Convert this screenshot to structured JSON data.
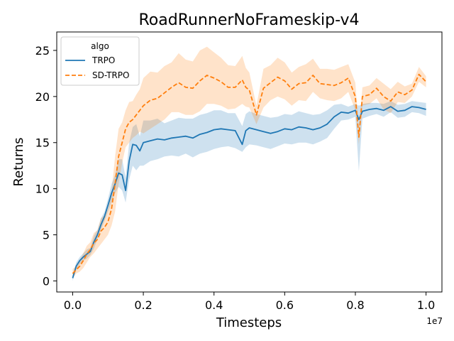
{
  "chart_data": {
    "type": "line",
    "title": "RoadRunnerNoFrameskip-v4",
    "xlabel": "Timesteps",
    "ylabel": "Returns",
    "x_offset_label": "1e7",
    "xlim": [
      -0.45,
      10.45
    ],
    "ylim": [
      -1.2,
      27.0
    ],
    "x_scale_factor": 10000000,
    "xticks": [
      0.0,
      2.0,
      4.0,
      6.0,
      8.0,
      10.0
    ],
    "xtick_labels": [
      "0.0",
      "0.2",
      "0.4",
      "0.6",
      "0.8",
      "1.0"
    ],
    "yticks": [
      0,
      5,
      10,
      15,
      20,
      25
    ],
    "ytick_labels": [
      "0",
      "5",
      "10",
      "15",
      "20",
      "25"
    ],
    "grid": false,
    "legend": {
      "title": "algo",
      "placement": "upper-left"
    },
    "series": [
      {
        "name": "TRPO",
        "color": "#1f77b4",
        "style": "solid",
        "x": [
          0.0,
          0.1,
          0.2,
          0.3,
          0.4,
          0.5,
          0.6,
          0.7,
          0.8,
          0.9,
          1.0,
          1.1,
          1.2,
          1.3,
          1.4,
          1.5,
          1.6,
          1.7,
          1.8,
          1.9,
          2.0,
          2.2,
          2.4,
          2.6,
          2.8,
          3.0,
          3.2,
          3.4,
          3.6,
          3.8,
          4.0,
          4.2,
          4.4,
          4.6,
          4.8,
          4.9,
          5.0,
          5.2,
          5.4,
          5.6,
          5.8,
          6.0,
          6.2,
          6.4,
          6.6,
          6.8,
          7.0,
          7.2,
          7.4,
          7.6,
          7.8,
          8.0,
          8.1,
          8.2,
          8.4,
          8.6,
          8.8,
          9.0,
          9.2,
          9.4,
          9.6,
          9.8,
          10.0
        ],
        "y": [
          0.3,
          1.6,
          2.2,
          2.6,
          2.9,
          3.2,
          4.2,
          5.0,
          6.1,
          7.0,
          8.2,
          9.5,
          10.5,
          11.7,
          11.5,
          9.8,
          13.0,
          14.8,
          14.7,
          14.1,
          15.0,
          15.2,
          15.4,
          15.3,
          15.5,
          15.6,
          15.7,
          15.5,
          15.9,
          16.1,
          16.4,
          16.5,
          16.4,
          16.3,
          14.8,
          16.3,
          16.6,
          16.4,
          16.2,
          16.0,
          16.2,
          16.5,
          16.4,
          16.7,
          16.6,
          16.4,
          16.6,
          17.0,
          17.8,
          18.3,
          18.2,
          18.5,
          17.5,
          18.4,
          18.6,
          18.7,
          18.5,
          18.9,
          18.4,
          18.5,
          18.9,
          18.8,
          18.6
        ],
        "lower": [
          0.0,
          1.2,
          1.8,
          2.2,
          2.4,
          2.8,
          3.5,
          4.5,
          5.5,
          6.5,
          7.5,
          8.5,
          9.5,
          10.2,
          9.8,
          8.5,
          11.0,
          12.5,
          12.0,
          12.5,
          12.5,
          13.0,
          13.2,
          13.5,
          13.6,
          13.5,
          13.8,
          13.4,
          13.8,
          14.0,
          14.3,
          14.5,
          14.6,
          14.4,
          14.0,
          14.5,
          14.8,
          14.7,
          14.5,
          14.3,
          14.6,
          14.9,
          14.8,
          15.0,
          15.0,
          14.8,
          15.1,
          15.5,
          16.5,
          17.4,
          17.5,
          17.8,
          11.9,
          17.6,
          17.9,
          18.1,
          17.8,
          18.3,
          17.7,
          17.8,
          18.3,
          18.2,
          17.9
        ],
        "upper": [
          0.6,
          2.0,
          2.6,
          3.0,
          3.4,
          3.6,
          4.9,
          5.5,
          6.8,
          7.5,
          8.9,
          10.5,
          11.5,
          13.2,
          13.2,
          11.2,
          15.0,
          16.7,
          17.0,
          15.7,
          17.4,
          17.4,
          17.6,
          17.1,
          17.4,
          17.7,
          17.6,
          17.6,
          18.0,
          18.2,
          18.5,
          18.5,
          18.2,
          18.2,
          16.8,
          18.1,
          18.4,
          18.1,
          17.9,
          17.7,
          17.8,
          18.1,
          18.0,
          18.4,
          18.2,
          18.0,
          18.1,
          18.5,
          19.1,
          19.2,
          18.9,
          19.2,
          19.0,
          19.2,
          19.3,
          19.3,
          19.2,
          19.5,
          19.1,
          19.2,
          19.5,
          19.4,
          19.3
        ]
      },
      {
        "name": "SD-TRPO",
        "color": "#ff7f0e",
        "style": "dashed",
        "x": [
          0.0,
          0.1,
          0.2,
          0.3,
          0.4,
          0.5,
          0.6,
          0.7,
          0.8,
          0.9,
          1.0,
          1.1,
          1.2,
          1.3,
          1.4,
          1.5,
          1.6,
          1.7,
          1.8,
          1.9,
          2.0,
          2.2,
          2.4,
          2.6,
          2.8,
          3.0,
          3.2,
          3.4,
          3.6,
          3.8,
          4.0,
          4.2,
          4.4,
          4.6,
          4.8,
          4.9,
          5.0,
          5.2,
          5.4,
          5.6,
          5.8,
          6.0,
          6.2,
          6.4,
          6.6,
          6.8,
          7.0,
          7.2,
          7.4,
          7.6,
          7.8,
          8.0,
          8.1,
          8.2,
          8.4,
          8.6,
          8.8,
          9.0,
          9.2,
          9.4,
          9.6,
          9.8,
          10.0
        ],
        "y": [
          0.8,
          1.2,
          1.6,
          2.2,
          2.9,
          3.4,
          4.1,
          4.5,
          5.4,
          5.8,
          6.4,
          7.8,
          10.5,
          13.5,
          15.0,
          16.5,
          17.2,
          17.5,
          18.0,
          18.5,
          19.0,
          19.6,
          19.8,
          20.4,
          21.0,
          21.5,
          21.0,
          20.9,
          21.7,
          22.3,
          22.0,
          21.6,
          21.0,
          21.0,
          21.8,
          21.0,
          20.7,
          18.0,
          20.9,
          21.5,
          22.1,
          21.7,
          20.8,
          21.4,
          21.5,
          22.3,
          21.4,
          21.3,
          21.2,
          21.5,
          22.0,
          20.0,
          15.6,
          20.0,
          20.2,
          20.9,
          20.0,
          19.5,
          20.5,
          20.2,
          20.7,
          22.4,
          21.6
        ],
        "lower": [
          0.3,
          0.8,
          1.0,
          1.4,
          2.0,
          2.6,
          3.0,
          3.5,
          4.0,
          4.5,
          5.0,
          6.0,
          7.5,
          10.5,
          12.8,
          14.5,
          15.0,
          15.5,
          15.8,
          16.2,
          16.0,
          16.5,
          17.0,
          17.5,
          18.3,
          18.3,
          18.0,
          18.0,
          18.4,
          19.2,
          19.2,
          19.0,
          18.6,
          18.7,
          19.2,
          18.9,
          18.8,
          17.0,
          18.8,
          19.6,
          20.0,
          19.7,
          19.0,
          19.6,
          19.5,
          20.5,
          19.8,
          19.6,
          19.5,
          19.8,
          20.5,
          18.5,
          14.8,
          19.0,
          19.2,
          19.8,
          18.6,
          18.2,
          19.4,
          19.3,
          20.0,
          21.6,
          21.0
        ],
        "upper": [
          1.3,
          1.6,
          2.2,
          3.0,
          3.8,
          4.2,
          5.2,
          5.5,
          6.8,
          7.1,
          7.8,
          9.6,
          13.5,
          16.5,
          17.2,
          18.5,
          19.4,
          19.5,
          20.2,
          20.8,
          22.0,
          22.7,
          22.6,
          23.3,
          23.7,
          24.7,
          24.0,
          23.8,
          25.0,
          25.4,
          24.8,
          24.2,
          23.4,
          23.3,
          24.4,
          23.1,
          22.6,
          19.0,
          23.0,
          23.4,
          24.2,
          23.7,
          22.6,
          23.2,
          23.5,
          24.1,
          23.0,
          23.0,
          22.9,
          23.2,
          23.5,
          21.5,
          16.4,
          21.0,
          21.2,
          22.0,
          21.4,
          20.8,
          21.6,
          21.1,
          21.4,
          23.2,
          22.2
        ]
      }
    ]
  }
}
